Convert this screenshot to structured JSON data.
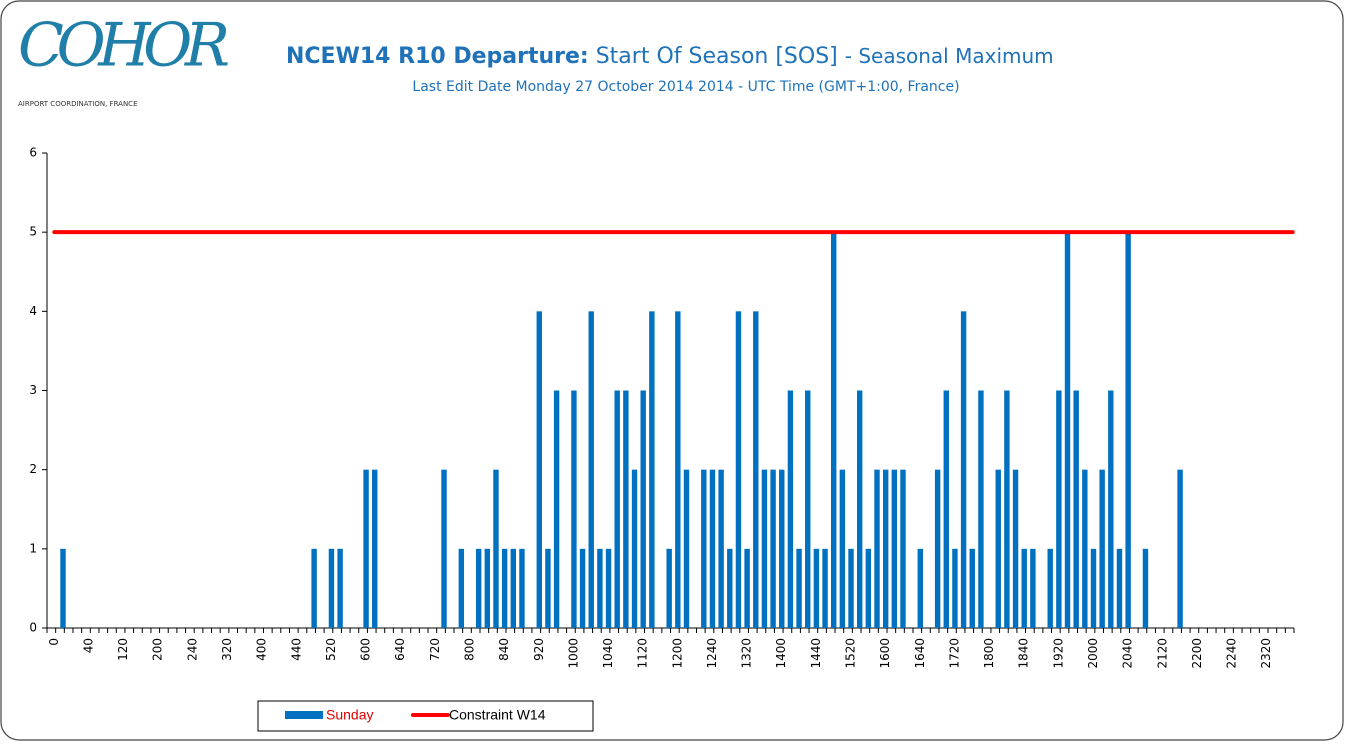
{
  "logo": {
    "name": "COHOR",
    "subtitle": "AIRPORT COORDINATION, FRANCE"
  },
  "chart_data": {
    "type": "bar",
    "title": [
      "NCEW14 R10 Departure:",
      "Start Of Season [SOS]",
      "- Seasonal Maximum"
    ],
    "subtitle": "Last Edit Date Monday 27 October 2014 2014 - UTC Time (GMT+1:00,  France)",
    "categories": [
      "0",
      null,
      null,
      null,
      "40",
      null,
      null,
      null,
      "120",
      null,
      null,
      null,
      "200",
      null,
      null,
      null,
      "240",
      null,
      null,
      null,
      "320",
      null,
      null,
      null,
      "400",
      null,
      null,
      null,
      "440",
      null,
      null,
      null,
      "520",
      null,
      null,
      null,
      "600",
      null,
      null,
      null,
      "640",
      null,
      null,
      null,
      "720",
      null,
      null,
      null,
      "800",
      null,
      null,
      null,
      "840",
      null,
      null,
      null,
      "920",
      null,
      null,
      null,
      "1000",
      null,
      null,
      null,
      "1040",
      null,
      null,
      null,
      "1120",
      null,
      null,
      null,
      "1200",
      null,
      null,
      null,
      "1240",
      null,
      null,
      null,
      "1320",
      null,
      null,
      null,
      "1400",
      null,
      null,
      null,
      "1440",
      null,
      null,
      null,
      "1520",
      null,
      null,
      null,
      "1600",
      null,
      null,
      null,
      "1640",
      null,
      null,
      null,
      "1720",
      null,
      null,
      null,
      "1800",
      null,
      null,
      null,
      "1840",
      null,
      null,
      null,
      "1920",
      null,
      null,
      null,
      "2000",
      null,
      null,
      null,
      "2040",
      null,
      null,
      null,
      "2120",
      null,
      null,
      null,
      "2200",
      null,
      null,
      null,
      "2240",
      null,
      null,
      null,
      "2320",
      null,
      null,
      null
    ],
    "series": [
      {
        "name": "Sunday",
        "type": "bar",
        "color": "#0070c0",
        "values": [
          0,
          1,
          0,
          0,
          0,
          0,
          0,
          0,
          0,
          0,
          0,
          0,
          0,
          0,
          0,
          0,
          0,
          0,
          0,
          0,
          0,
          0,
          0,
          0,
          0,
          0,
          0,
          0,
          0,
          0,
          1,
          0,
          1,
          1,
          0,
          0,
          2,
          2,
          0,
          0,
          0,
          0,
          0,
          0,
          0,
          2,
          0,
          1,
          0,
          1,
          1,
          2,
          1,
          1,
          1,
          0,
          4,
          1,
          3,
          0,
          3,
          1,
          4,
          1,
          1,
          3,
          3,
          2,
          3,
          4,
          0,
          1,
          4,
          2,
          0,
          2,
          2,
          2,
          1,
          4,
          1,
          4,
          2,
          2,
          2,
          3,
          1,
          3,
          1,
          1,
          5,
          2,
          1,
          3,
          1,
          2,
          2,
          2,
          2,
          0,
          1,
          0,
          2,
          3,
          1,
          4,
          1,
          3,
          0,
          2,
          3,
          2,
          1,
          1,
          0,
          1,
          3,
          5,
          3,
          2,
          1,
          2,
          3,
          1,
          5,
          0,
          1,
          0,
          0,
          0,
          2,
          0,
          0,
          0,
          0,
          0,
          0,
          0,
          0,
          0,
          0,
          0,
          0,
          0
        ]
      },
      {
        "name": "Constraint W14",
        "type": "line",
        "color": "#ff0000",
        "values": [
          5,
          5,
          5,
          5,
          5,
          5,
          5,
          5,
          5,
          5,
          5,
          5,
          5,
          5,
          5,
          5,
          5,
          5,
          5,
          5,
          5,
          5,
          5,
          5,
          5,
          5,
          5,
          5,
          5,
          5,
          5,
          5,
          5,
          5,
          5,
          5,
          5,
          5,
          5,
          5,
          5,
          5,
          5,
          5,
          5,
          5,
          5,
          5,
          5,
          5,
          5,
          5,
          5,
          5,
          5,
          5,
          5,
          5,
          5,
          5,
          5,
          5,
          5,
          5,
          5,
          5,
          5,
          5,
          5,
          5,
          5,
          5,
          5,
          5,
          5,
          5,
          5,
          5,
          5,
          5,
          5,
          5,
          5,
          5,
          5,
          5,
          5,
          5,
          5,
          5,
          5,
          5,
          5,
          5,
          5,
          5,
          5,
          5,
          5,
          5,
          5,
          5,
          5,
          5,
          5,
          5,
          5,
          5,
          5,
          5,
          5,
          5,
          5,
          5,
          5,
          5,
          5,
          5,
          5,
          5,
          5,
          5,
          5,
          5,
          5,
          5,
          5,
          5,
          5,
          5,
          5,
          5,
          5,
          5,
          5,
          5,
          5,
          5,
          5,
          5,
          5,
          5,
          5,
          5
        ]
      }
    ],
    "ylim": [
      0,
      6
    ],
    "yticks": [
      0,
      1,
      2,
      3,
      4,
      5,
      6
    ],
    "grid": false,
    "legend": "bottom"
  }
}
